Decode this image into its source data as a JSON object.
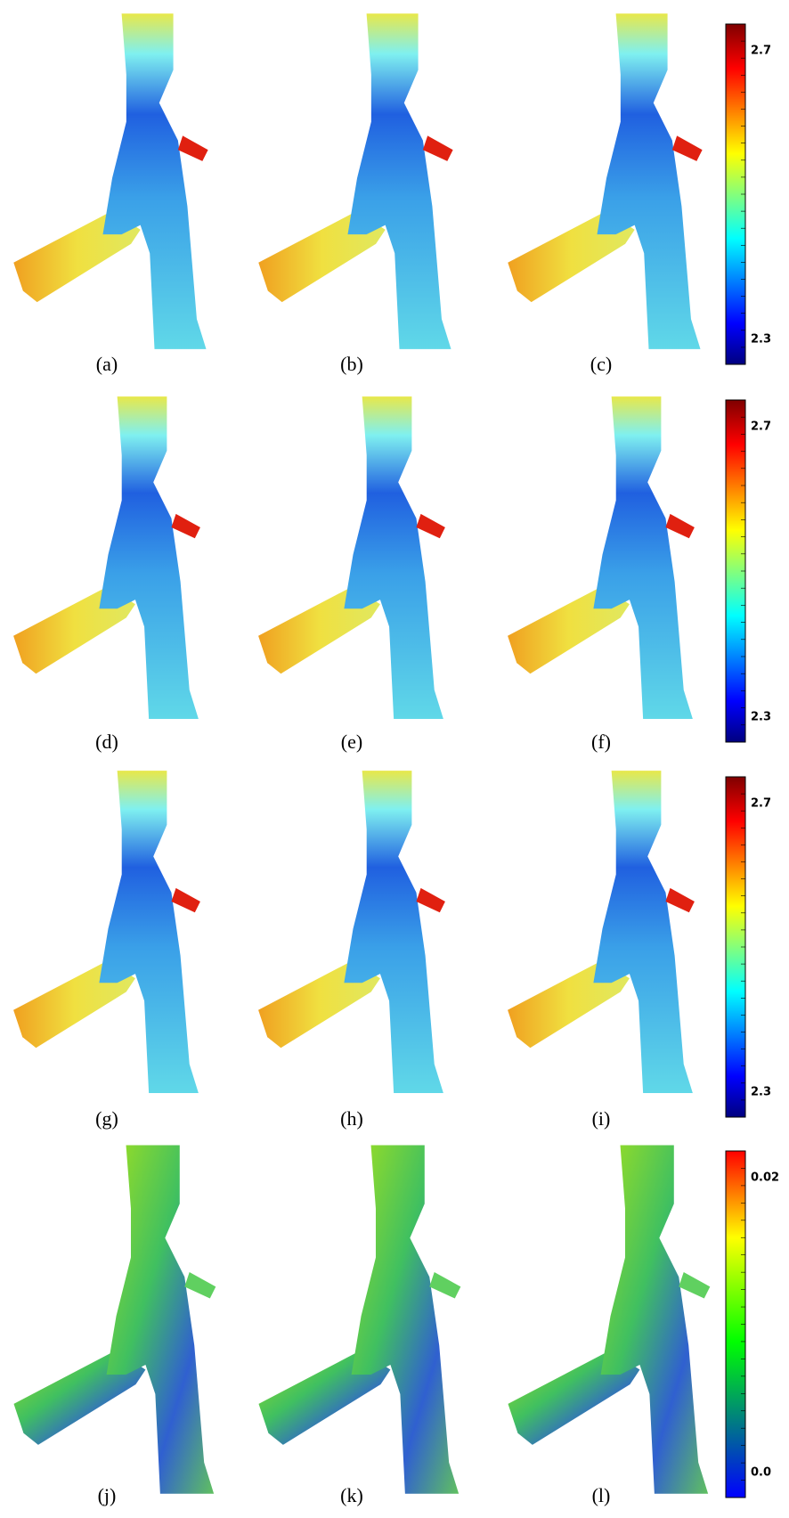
{
  "panels": [
    {
      "caption": "(a)"
    },
    {
      "caption": "(b)"
    },
    {
      "caption": "(c)"
    },
    {
      "caption": "(d)"
    },
    {
      "caption": "(e)"
    },
    {
      "caption": "(f)"
    },
    {
      "caption": "(g)"
    },
    {
      "caption": "(h)"
    },
    {
      "caption": "(i)"
    },
    {
      "caption": "(j)"
    },
    {
      "caption": "(k)"
    },
    {
      "caption": "(l)"
    }
  ],
  "colorbars": [
    {
      "max_label": "2.7",
      "min_label": "2.3"
    },
    {
      "max_label": "2.7",
      "min_label": "2.3"
    },
    {
      "max_label": "2.7",
      "min_label": "2.3"
    },
    {
      "max_label": "0.02",
      "min_label": "0.0"
    }
  ]
}
